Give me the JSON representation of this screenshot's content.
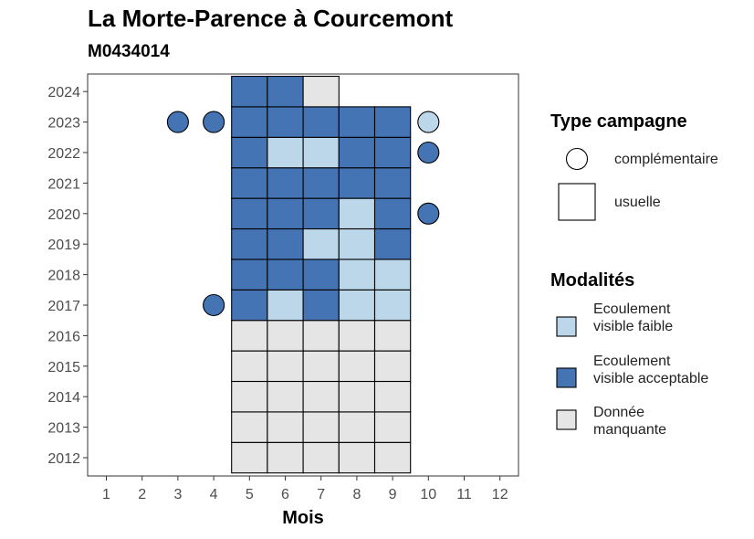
{
  "chart_data": {
    "type": "heatmap",
    "title": "La Morte-Parence à Courcemont",
    "subtitle": "M0434014",
    "xlabel": "Mois",
    "ylabel": "",
    "x_ticks": [
      1,
      2,
      3,
      4,
      5,
      6,
      7,
      8,
      9,
      10,
      11,
      12
    ],
    "y_ticks": [
      2012,
      2013,
      2014,
      2015,
      2016,
      2017,
      2018,
      2019,
      2020,
      2021,
      2022,
      2023,
      2024
    ],
    "colors": {
      "faible": "#bcd7e9",
      "acceptable": "#4574b4",
      "manquante": "#e5e5e5"
    },
    "legend_campagne": {
      "title": "Type campagne",
      "items": [
        {
          "label": "complémentaire",
          "shape": "circle"
        },
        {
          "label": "usuelle",
          "shape": "square"
        }
      ]
    },
    "legend_modalites": {
      "title": "Modalités",
      "items": [
        {
          "label": "Ecoulement visible faible",
          "key": "faible"
        },
        {
          "label": "Ecoulement visible acceptable",
          "key": "acceptable"
        },
        {
          "label": "Donnée manquante",
          "key": "manquante"
        }
      ]
    },
    "usuelle": [
      {
        "year": 2012,
        "month": 5,
        "v": "manquante"
      },
      {
        "year": 2012,
        "month": 6,
        "v": "manquante"
      },
      {
        "year": 2012,
        "month": 7,
        "v": "manquante"
      },
      {
        "year": 2012,
        "month": 8,
        "v": "manquante"
      },
      {
        "year": 2012,
        "month": 9,
        "v": "manquante"
      },
      {
        "year": 2013,
        "month": 5,
        "v": "manquante"
      },
      {
        "year": 2013,
        "month": 6,
        "v": "manquante"
      },
      {
        "year": 2013,
        "month": 7,
        "v": "manquante"
      },
      {
        "year": 2013,
        "month": 8,
        "v": "manquante"
      },
      {
        "year": 2013,
        "month": 9,
        "v": "manquante"
      },
      {
        "year": 2014,
        "month": 5,
        "v": "manquante"
      },
      {
        "year": 2014,
        "month": 6,
        "v": "manquante"
      },
      {
        "year": 2014,
        "month": 7,
        "v": "manquante"
      },
      {
        "year": 2014,
        "month": 8,
        "v": "manquante"
      },
      {
        "year": 2014,
        "month": 9,
        "v": "manquante"
      },
      {
        "year": 2015,
        "month": 5,
        "v": "manquante"
      },
      {
        "year": 2015,
        "month": 6,
        "v": "manquante"
      },
      {
        "year": 2015,
        "month": 7,
        "v": "manquante"
      },
      {
        "year": 2015,
        "month": 8,
        "v": "manquante"
      },
      {
        "year": 2015,
        "month": 9,
        "v": "manquante"
      },
      {
        "year": 2016,
        "month": 5,
        "v": "manquante"
      },
      {
        "year": 2016,
        "month": 6,
        "v": "manquante"
      },
      {
        "year": 2016,
        "month": 7,
        "v": "manquante"
      },
      {
        "year": 2016,
        "month": 8,
        "v": "manquante"
      },
      {
        "year": 2016,
        "month": 9,
        "v": "manquante"
      },
      {
        "year": 2017,
        "month": 5,
        "v": "acceptable"
      },
      {
        "year": 2017,
        "month": 6,
        "v": "faible"
      },
      {
        "year": 2017,
        "month": 7,
        "v": "acceptable"
      },
      {
        "year": 2017,
        "month": 8,
        "v": "faible"
      },
      {
        "year": 2017,
        "month": 9,
        "v": "faible"
      },
      {
        "year": 2018,
        "month": 5,
        "v": "acceptable"
      },
      {
        "year": 2018,
        "month": 6,
        "v": "acceptable"
      },
      {
        "year": 2018,
        "month": 7,
        "v": "acceptable"
      },
      {
        "year": 2018,
        "month": 8,
        "v": "faible"
      },
      {
        "year": 2018,
        "month": 9,
        "v": "faible"
      },
      {
        "year": 2019,
        "month": 5,
        "v": "acceptable"
      },
      {
        "year": 2019,
        "month": 6,
        "v": "acceptable"
      },
      {
        "year": 2019,
        "month": 7,
        "v": "faible"
      },
      {
        "year": 2019,
        "month": 8,
        "v": "faible"
      },
      {
        "year": 2019,
        "month": 9,
        "v": "acceptable"
      },
      {
        "year": 2020,
        "month": 5,
        "v": "acceptable"
      },
      {
        "year": 2020,
        "month": 6,
        "v": "acceptable"
      },
      {
        "year": 2020,
        "month": 7,
        "v": "acceptable"
      },
      {
        "year": 2020,
        "month": 8,
        "v": "faible"
      },
      {
        "year": 2020,
        "month": 9,
        "v": "acceptable"
      },
      {
        "year": 2021,
        "month": 5,
        "v": "acceptable"
      },
      {
        "year": 2021,
        "month": 6,
        "v": "acceptable"
      },
      {
        "year": 2021,
        "month": 7,
        "v": "acceptable"
      },
      {
        "year": 2021,
        "month": 8,
        "v": "acceptable"
      },
      {
        "year": 2021,
        "month": 9,
        "v": "acceptable"
      },
      {
        "year": 2022,
        "month": 5,
        "v": "acceptable"
      },
      {
        "year": 2022,
        "month": 6,
        "v": "faible"
      },
      {
        "year": 2022,
        "month": 7,
        "v": "faible"
      },
      {
        "year": 2022,
        "month": 8,
        "v": "acceptable"
      },
      {
        "year": 2022,
        "month": 9,
        "v": "acceptable"
      },
      {
        "year": 2023,
        "month": 5,
        "v": "acceptable"
      },
      {
        "year": 2023,
        "month": 6,
        "v": "acceptable"
      },
      {
        "year": 2023,
        "month": 7,
        "v": "acceptable"
      },
      {
        "year": 2023,
        "month": 8,
        "v": "acceptable"
      },
      {
        "year": 2023,
        "month": 9,
        "v": "acceptable"
      },
      {
        "year": 2024,
        "month": 5,
        "v": "acceptable"
      },
      {
        "year": 2024,
        "month": 6,
        "v": "acceptable"
      },
      {
        "year": 2024,
        "month": 7,
        "v": "manquante"
      }
    ],
    "complementaire": [
      {
        "year": 2023,
        "month": 3,
        "v": "acceptable"
      },
      {
        "year": 2023,
        "month": 4,
        "v": "acceptable"
      },
      {
        "year": 2023,
        "month": 10,
        "v": "faible"
      },
      {
        "year": 2022,
        "month": 10,
        "v": "acceptable"
      },
      {
        "year": 2020,
        "month": 10,
        "v": "acceptable"
      },
      {
        "year": 2017,
        "month": 4,
        "v": "acceptable"
      }
    ]
  }
}
